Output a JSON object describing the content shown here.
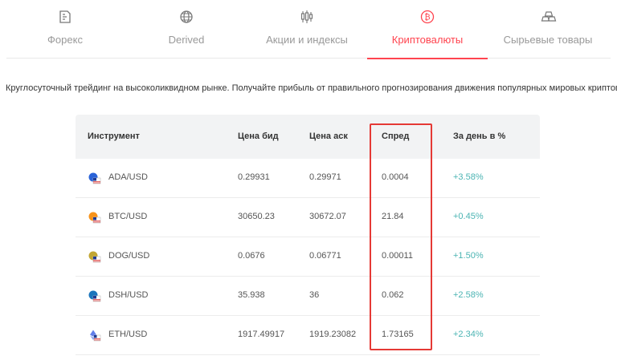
{
  "tabs": [
    {
      "label": "Форекс",
      "icon": "forex-icon",
      "active": false
    },
    {
      "label": "Derived",
      "icon": "globe-icon",
      "active": false
    },
    {
      "label": "Акции и индексы",
      "icon": "candlestick-icon",
      "active": false
    },
    {
      "label": "Криптовалюты",
      "icon": "bitcoin-icon",
      "active": true
    },
    {
      "label": "Сырьевые товары",
      "icon": "gold-bars-icon",
      "active": false
    }
  ],
  "intro": "Круглосуточный трейдинг на высоколиквидном рынке. Получайте прибыль от правильного прогнозирования движения популярных мировых криптовалют.",
  "table": {
    "headers": {
      "instrument": "Инструмент",
      "bid": "Цена бид",
      "ask": "Цена аск",
      "spread": "Спред",
      "change": "За день в %"
    },
    "rows": [
      {
        "symbol": "ADA/USD",
        "bid": "0.29931",
        "ask": "0.29971",
        "spread": "0.0004",
        "change": "+3.58%",
        "coin_color": "#2a63d8"
      },
      {
        "symbol": "BTC/USD",
        "bid": "30650.23",
        "ask": "30672.07",
        "spread": "21.84",
        "change": "+0.45%",
        "coin_color": "#f7931a"
      },
      {
        "symbol": "DOG/USD",
        "bid": "0.0676",
        "ask": "0.06771",
        "spread": "0.00011",
        "change": "+1.50%",
        "coin_color": "#c2a633"
      },
      {
        "symbol": "DSH/USD",
        "bid": "35.938",
        "ask": "36",
        "spread": "0.062",
        "change": "+2.58%",
        "coin_color": "#1c75bc"
      },
      {
        "symbol": "ETH/USD",
        "bid": "1917.49917",
        "ask": "1919.23082",
        "spread": "1.73165",
        "change": "+2.34%",
        "coin_color": "#627eea"
      }
    ]
  },
  "colors": {
    "accent": "#ff444f",
    "positive": "#4bb4b3",
    "highlight_box": "#e53935"
  }
}
